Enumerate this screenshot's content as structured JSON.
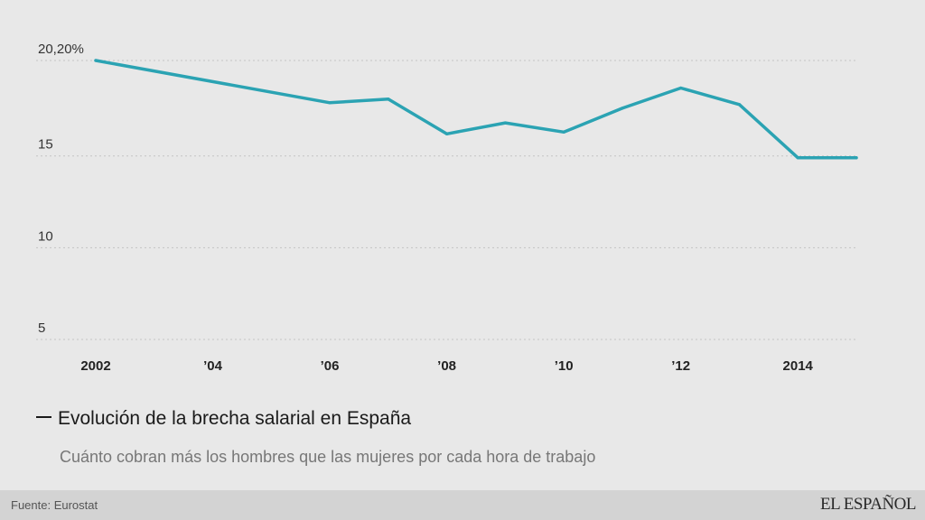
{
  "chart_data": {
    "type": "line",
    "title": "Evolución de la brecha salarial en España",
    "subtitle": "Cuánto cobran más los hombres que las mujeres por cada hora de trabajo",
    "x": [
      2002,
      2006,
      2007,
      2008,
      2009,
      2010,
      2011,
      2012,
      2013,
      2014,
      2015
    ],
    "series": [
      {
        "values": [
          20.2,
          17.9,
          18.1,
          16.2,
          16.8,
          16.3,
          17.6,
          18.7,
          17.8,
          14.9,
          14.9
        ]
      }
    ],
    "x_ticks": [
      {
        "value": 2002,
        "label": "2002"
      },
      {
        "value": 2004,
        "label": "’04"
      },
      {
        "value": 2006,
        "label": "’06"
      },
      {
        "value": 2008,
        "label": "’08"
      },
      {
        "value": 2010,
        "label": "’10"
      },
      {
        "value": 2012,
        "label": "’12"
      },
      {
        "value": 2014,
        "label": "2014"
      }
    ],
    "y_ticks": [
      {
        "value": 20.2,
        "label": "20,20%"
      },
      {
        "value": 15,
        "label": "15"
      },
      {
        "value": 10,
        "label": "10"
      },
      {
        "value": 5,
        "label": "5"
      }
    ],
    "xlim": [
      2002,
      2015
    ],
    "ylim": [
      5,
      20.2
    ],
    "grid": true,
    "line_color": "#2ba3b3"
  },
  "footer": {
    "source": "Fuente: Eurostat",
    "logo": "EL ESPAÑOL"
  }
}
